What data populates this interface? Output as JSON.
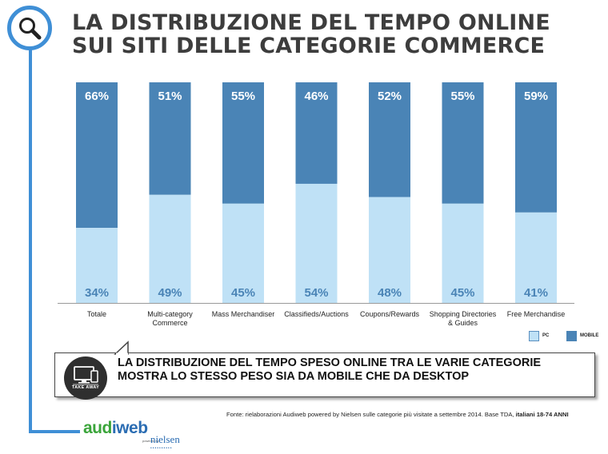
{
  "title": "LA DISTRIBUZIONE DEL TEMPO ONLINE SUI SITI DELLE CATEGORIE COMMERCE",
  "colors": {
    "pc": "#bfe1f6",
    "mobile": "#4a84b6",
    "accent": "#3f8fd6"
  },
  "chart_data": {
    "type": "bar",
    "stacked": true,
    "percent": true,
    "categories": [
      "Totale",
      "Multi-category Commerce",
      "Mass Merchandiser",
      "Classifieds/Auctions",
      "Coupons/Rewards",
      "Shopping Directories & Guides",
      "Free Merchandise"
    ],
    "category_lines": [
      [
        "Totale"
      ],
      [
        "Multi-category",
        "Commerce"
      ],
      [
        "Mass Merchandiser"
      ],
      [
        "Classifieds/Auctions"
      ],
      [
        "Coupons/Rewards"
      ],
      [
        "Shopping Directories",
        "& Guides"
      ],
      [
        "Free Merchandise"
      ]
    ],
    "series": [
      {
        "name": "PC",
        "values": [
          34,
          49,
          45,
          54,
          48,
          45,
          41
        ],
        "labels": [
          "34%",
          "49%",
          "45%",
          "54%",
          "48%",
          "45%",
          "41%"
        ]
      },
      {
        "name": "MOBILE",
        "values": [
          66,
          51,
          55,
          46,
          52,
          55,
          59
        ],
        "labels": [
          "66%",
          "51%",
          "55%",
          "46%",
          "52%",
          "55%",
          "59%"
        ]
      }
    ],
    "ylim": [
      0,
      100
    ],
    "legend_position": "bottom-right"
  },
  "legend": {
    "pc": "PC",
    "mobile": "MOBILE"
  },
  "callout": {
    "badge": "TAKE AWAY",
    "text": "LA DISTRIBUZIONE DEL TEMPO SPESO ONLINE TRA LE VARIE CATEGORIE MOSTRA LO STESSO PESO SIA DA MOBILE CHE DA DESKTOP"
  },
  "source": {
    "text": "Fonte: rielaborazioni Audiweb powered by Nielsen sulle categorie più visitate a settembre 2014. Base TDA, ",
    "bold": "italiani 18-74 ANNI"
  },
  "logo": {
    "audiweb": "audiweb",
    "powered": "powered by",
    "nielsen": "nielsen"
  }
}
